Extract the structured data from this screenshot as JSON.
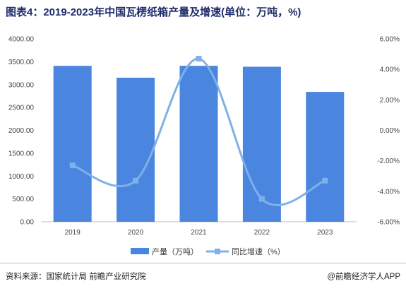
{
  "title": "图表4：2019-2023年中国瓦楞纸箱产量及增速(单位：万吨，%)",
  "source": "资料来源：国家统计局 前瞻产业研究院",
  "credit": "@前瞻经济学人APP",
  "colors": {
    "bar": "#4a86e0",
    "line": "#7fb0e8",
    "title": "#1f2d6b"
  },
  "chart_data": {
    "type": "bar",
    "categories": [
      "2019",
      "2020",
      "2021",
      "2022",
      "2023"
    ],
    "series": [
      {
        "name": "产量（万吨）",
        "type": "bar",
        "axis": "left",
        "values": [
          3410,
          3150,
          3410,
          3390,
          2840
        ]
      },
      {
        "name": "同比增速（%）",
        "type": "line",
        "axis": "right",
        "values": [
          -2.3,
          -3.3,
          4.7,
          -4.5,
          -3.3
        ]
      }
    ],
    "y_left": {
      "min": 0,
      "max": 4000,
      "step": 500,
      "ticks": [
        "0.00",
        "500.00",
        "1000.00",
        "1500.00",
        "2000.00",
        "2500.00",
        "3000.00",
        "3500.00",
        "4000.00"
      ]
    },
    "y_right": {
      "min": -6,
      "max": 6,
      "step": 2,
      "ticks": [
        "-6.00%",
        "-4.00%",
        "-2.00%",
        "0.00%",
        "2.00%",
        "4.00%",
        "6.00%"
      ]
    },
    "legend": {
      "position": "bottom",
      "items": [
        "产量（万吨）",
        "同比增速（%）"
      ]
    },
    "grid": false
  }
}
